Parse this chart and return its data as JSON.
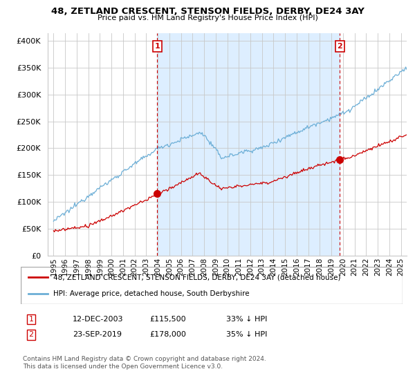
{
  "title": "48, ZETLAND CRESCENT, STENSON FIELDS, DERBY, DE24 3AY",
  "subtitle": "Price paid vs. HM Land Registry's House Price Index (HPI)",
  "ylabel_ticks": [
    "£0",
    "£50K",
    "£100K",
    "£150K",
    "£200K",
    "£250K",
    "£300K",
    "£350K",
    "£400K"
  ],
  "ytick_values": [
    0,
    50000,
    100000,
    150000,
    200000,
    250000,
    300000,
    350000,
    400000
  ],
  "ylim": [
    0,
    415000
  ],
  "xlim_start": 1994.5,
  "xlim_end": 2025.5,
  "sale1_date": 2003.95,
  "sale1_price": 115500,
  "sale1_label": "1",
  "sale2_date": 2019.73,
  "sale2_price": 178000,
  "sale2_label": "2",
  "hpi_color": "#6baed6",
  "hpi_fill_color": "#ddeeff",
  "price_color": "#cc0000",
  "annotation_box_color": "#cc0000",
  "grid_color": "#c8c8c8",
  "background_color": "#ffffff",
  "legend_line1": "48, ZETLAND CRESCENT, STENSON FIELDS, DERBY, DE24 3AY (detached house)",
  "legend_line2": "HPI: Average price, detached house, South Derbyshire",
  "footnote1": "Contains HM Land Registry data © Crown copyright and database right 2024.",
  "footnote2": "This data is licensed under the Open Government Licence v3.0.",
  "table_row1": [
    "1",
    "12-DEC-2003",
    "£115,500",
    "33% ↓ HPI"
  ],
  "table_row2": [
    "2",
    "23-SEP-2019",
    "£178,000",
    "35% ↓ HPI"
  ]
}
